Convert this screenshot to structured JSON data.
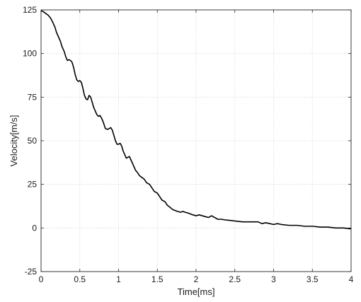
{
  "chart_data": {
    "type": "line",
    "title": "",
    "xlabel": "Time[ms]",
    "ylabel": "Velocity[m/s]",
    "xlim": [
      0,
      4
    ],
    "ylim": [
      -25,
      125
    ],
    "xticks": [
      0,
      0.5,
      1,
      1.5,
      2,
      2.5,
      3,
      3.5,
      4
    ],
    "yticks": [
      -25,
      0,
      25,
      50,
      75,
      100,
      125
    ],
    "xtick_labels": [
      "0",
      "0.5",
      "1",
      "1.5",
      "2",
      "2.5",
      "3",
      "3.5",
      "4"
    ],
    "ytick_labels": [
      "-25",
      "0",
      "25",
      "50",
      "75",
      "100",
      "125"
    ],
    "grid": true,
    "legend": "none",
    "line_color": "#000000",
    "series": [
      {
        "x": [
          0,
          0.03,
          0.06,
          0.09,
          0.12,
          0.15,
          0.18,
          0.2,
          0.22,
          0.25,
          0.27,
          0.3,
          0.32,
          0.34,
          0.36,
          0.38,
          0.4,
          0.42,
          0.44,
          0.46,
          0.48,
          0.5,
          0.52,
          0.54,
          0.56,
          0.58,
          0.6,
          0.62,
          0.64,
          0.66,
          0.68,
          0.7,
          0.72,
          0.74,
          0.76,
          0.78,
          0.8,
          0.83,
          0.86,
          0.88,
          0.9,
          0.92,
          0.94,
          0.96,
          0.98,
          1.0,
          1.02,
          1.04,
          1.06,
          1.08,
          1.1,
          1.12,
          1.14,
          1.16,
          1.18,
          1.2,
          1.22,
          1.24,
          1.27,
          1.3,
          1.33,
          1.36,
          1.4,
          1.43,
          1.46,
          1.5,
          1.53,
          1.56,
          1.6,
          1.63,
          1.66,
          1.7,
          1.73,
          1.76,
          1.8,
          1.83,
          1.86,
          1.9,
          1.93,
          1.96,
          2.0,
          2.04,
          2.08,
          2.12,
          2.16,
          2.2,
          2.24,
          2.28,
          2.32,
          2.4,
          2.5,
          2.6,
          2.7,
          2.8,
          2.85,
          2.9,
          2.95,
          3.0,
          3.05,
          3.1,
          3.2,
          3.3,
          3.4,
          3.5,
          3.6,
          3.7,
          3.8,
          3.9,
          4.0
        ],
        "y": [
          124.5,
          124,
          123,
          122,
          120.5,
          118,
          115,
          112,
          110,
          107,
          104,
          101,
          98,
          96,
          96.5,
          96,
          95,
          92,
          88,
          85,
          84,
          84.5,
          83.5,
          80,
          76,
          74,
          73.5,
          76,
          75,
          72,
          69,
          67,
          65,
          64,
          64.5,
          63,
          61,
          57,
          56.5,
          57,
          57.5,
          56,
          53,
          50,
          48,
          48,
          48.5,
          47,
          44,
          42,
          40,
          40.5,
          41,
          39,
          37,
          35,
          33,
          32,
          30,
          29,
          28,
          26,
          25,
          23,
          21,
          20,
          18,
          16,
          15,
          13,
          12,
          10.5,
          10,
          9.5,
          9,
          9.5,
          9,
          8.5,
          8,
          7.5,
          7,
          7.5,
          7,
          6.5,
          6,
          7,
          6,
          5,
          5,
          4.5,
          4,
          3.5,
          3.5,
          3.5,
          2.5,
          3,
          2.5,
          2,
          2.5,
          2,
          1.5,
          1.5,
          1,
          1,
          0.5,
          0.5,
          0,
          0,
          -0.5
        ]
      }
    ]
  }
}
